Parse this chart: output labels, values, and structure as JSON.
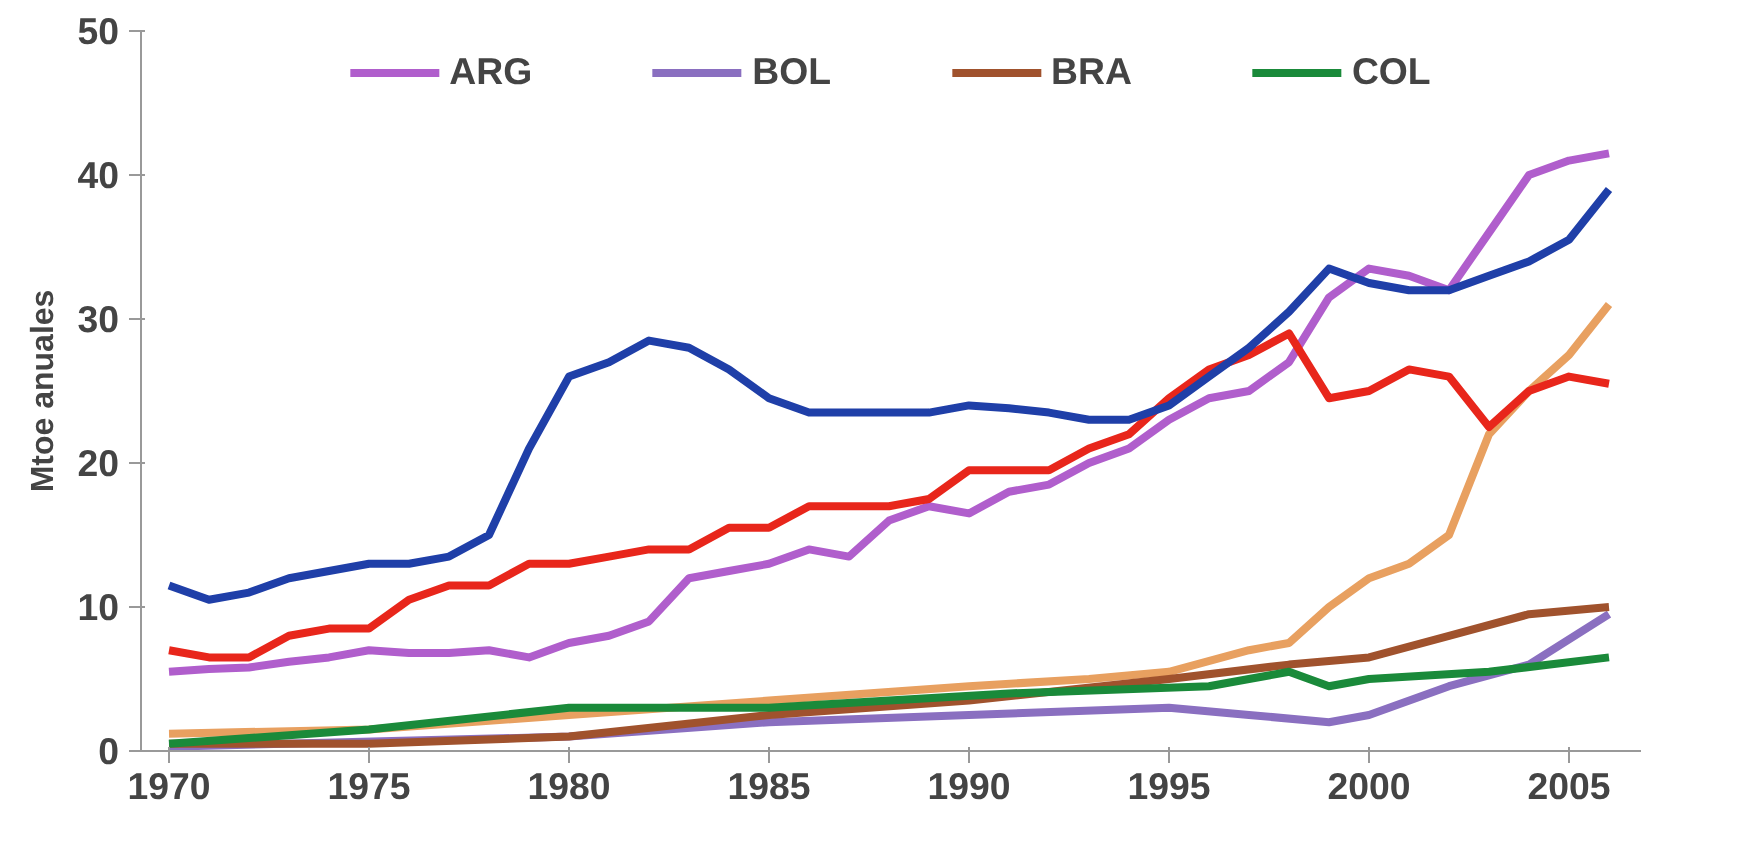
{
  "chart_data": {
    "type": "line",
    "ylabel": "Mtoe anuales",
    "xlim": [
      1969.3,
      2006.8
    ],
    "xticks": [
      1970,
      1975,
      1980,
      1985,
      1990,
      1995,
      2000,
      2005
    ],
    "ylim": [
      0,
      50
    ],
    "yticks": [
      0,
      10,
      20,
      30,
      40,
      50
    ],
    "grid": false,
    "legend": "top",
    "marker": "none",
    "line_style": "solid",
    "series": [
      {
        "color": "#e8a060",
        "x": [
          1970,
          1975,
          1980,
          1985,
          1990,
          1993,
          1995,
          1997,
          1998,
          1999,
          2000,
          2001,
          2002,
          2003,
          2004,
          2005,
          2006
        ],
        "values": [
          1.2,
          1.5,
          2.5,
          3.5,
          4.5,
          5,
          5.5,
          7,
          7.5,
          10,
          12,
          13,
          15,
          22,
          25,
          27.5,
          31
        ]
      },
      {
        "name": "BOL",
        "color": "#8a6fc0",
        "x": [
          1970,
          1980,
          1985,
          1990,
          1995,
          1997,
          1999,
          2000,
          2002,
          2004,
          2006
        ],
        "values": [
          0.3,
          1,
          2,
          2.5,
          3,
          2.5,
          2,
          2.5,
          4.5,
          6,
          9.5
        ]
      },
      {
        "name": "BRA",
        "color": "#a0522d",
        "x": [
          1970,
          1975,
          1980,
          1985,
          1990,
          1995,
          1998,
          2000,
          2002,
          2004,
          2006
        ],
        "values": [
          0.5,
          0.5,
          1,
          2.5,
          3.5,
          5,
          6,
          6.5,
          8,
          9.5,
          10
        ]
      },
      {
        "name": "COL",
        "color": "#1a8a3a",
        "x": [
          1970,
          1975,
          1980,
          1985,
          1988,
          1991,
          1996,
          1997,
          1998,
          1999,
          2000,
          2003,
          2006
        ],
        "values": [
          0.5,
          1.5,
          3,
          3,
          3.5,
          4,
          4.5,
          5,
          5.5,
          4.5,
          5,
          5.5,
          6.5
        ]
      },
      {
        "name": "ARG",
        "color": "#b05ecc",
        "x": [
          1970,
          1971,
          1972,
          1973,
          1974,
          1975,
          1976,
          1977,
          1978,
          1979,
          1980,
          1981,
          1982,
          1983,
          1984,
          1985,
          1986,
          1987,
          1988,
          1989,
          1990,
          1991,
          1992,
          1993,
          1994,
          1995,
          1996,
          1997,
          1998,
          1999,
          2000,
          2001,
          2002,
          2003,
          2004,
          2005,
          2006
        ],
        "values": [
          5.5,
          5.7,
          5.8,
          6.2,
          6.5,
          7,
          6.8,
          6.8,
          7,
          6.5,
          7.5,
          8,
          9,
          12,
          12.5,
          13,
          14,
          13.5,
          16,
          17,
          16.5,
          18,
          18.5,
          20,
          21,
          23,
          24.5,
          25,
          27,
          31.5,
          33.5,
          33,
          32,
          36,
          40,
          41,
          41.5
        ]
      },
      {
        "color": "#e8261b",
        "x": [
          1970,
          1971,
          1972,
          1973,
          1974,
          1975,
          1976,
          1977,
          1978,
          1979,
          1980,
          1981,
          1982,
          1983,
          1984,
          1985,
          1986,
          1987,
          1988,
          1989,
          1990,
          1991,
          1992,
          1993,
          1994,
          1995,
          1996,
          1997,
          1998,
          1999,
          2000,
          2001,
          2002,
          2003,
          2004,
          2005,
          2006
        ],
        "values": [
          7,
          6.5,
          6.5,
          8,
          8.5,
          8.5,
          10.5,
          11.5,
          11.5,
          13,
          13,
          13.5,
          14,
          14,
          15.5,
          15.5,
          17,
          17,
          17,
          17.5,
          19.5,
          19.5,
          19.5,
          21,
          22,
          24.5,
          26.5,
          27.5,
          29,
          24.5,
          25,
          26.5,
          26,
          22.5,
          25,
          26,
          25.5
        ]
      },
      {
        "color": "#1f3fa8",
        "x": [
          1970,
          1971,
          1972,
          1973,
          1974,
          1975,
          1976,
          1977,
          1978,
          1979,
          1980,
          1981,
          1982,
          1983,
          1984,
          1985,
          1986,
          1987,
          1988,
          1989,
          1990,
          1991,
          1992,
          1993,
          1994,
          1995,
          1996,
          1997,
          1998,
          1999,
          2000,
          2001,
          2002,
          2003,
          2004,
          2005,
          2006
        ],
        "values": [
          11.5,
          10.5,
          11,
          12,
          12.5,
          13,
          13,
          13.5,
          15,
          21,
          26,
          27,
          28.5,
          28,
          26.5,
          24.5,
          23.5,
          23.5,
          23.5,
          23.5,
          24,
          23.8,
          23.5,
          23,
          23,
          24,
          26,
          28,
          30.5,
          33.5,
          32.5,
          32,
          32,
          33,
          34,
          35.5,
          39
        ]
      }
    ]
  }
}
